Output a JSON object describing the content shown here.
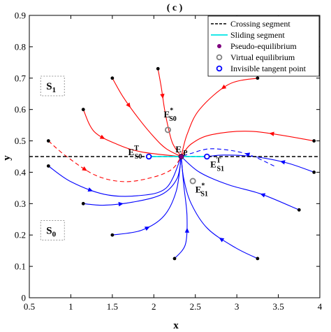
{
  "chart_data": {
    "type": "line",
    "title": "( c )",
    "xlabel": "x",
    "ylabel": "y",
    "xlim": [
      0.5,
      4
    ],
    "ylim": [
      0,
      0.9
    ],
    "xticks": [
      0.5,
      1,
      1.5,
      2,
      2.5,
      3,
      3.5,
      4
    ],
    "yticks": [
      0,
      0.1,
      0.2,
      0.3,
      0.4,
      0.5,
      0.6,
      0.7,
      0.8,
      0.9
    ],
    "xtick_labels": [
      "0.5",
      "1",
      "1.5",
      "2",
      "2.5",
      "3",
      "3.5",
      "4"
    ],
    "ytick_labels": [
      "0",
      "0.1",
      "0.2",
      "0.3",
      "0.4",
      "0.5",
      "0.6",
      "0.7",
      "0.8",
      "0.9"
    ],
    "grid": false,
    "legend_position": "top-right",
    "crossing_segment_y": 0.45,
    "sliding_segment": {
      "x": [
        1.94,
        2.64
      ],
      "y": 0.45
    },
    "legend": [
      {
        "label": "Crossing segment",
        "kind": "dashed-line",
        "color": "#000000"
      },
      {
        "label": "Sliding segment",
        "kind": "line",
        "color": "#00e5e5"
      },
      {
        "label": "Pseudo-equilibrium",
        "kind": "dot",
        "color": "#7f007f"
      },
      {
        "label": "Virtual equilibrium",
        "kind": "ring",
        "color": "#808080"
      },
      {
        "label": "Invisible tangent point",
        "kind": "ring",
        "color": "#0000ff"
      }
    ],
    "points": [
      {
        "id": "E_P",
        "x": 2.33,
        "y": 0.45,
        "kind": "pseudo"
      },
      {
        "id": "E_S0_T",
        "x": 1.94,
        "y": 0.45,
        "kind": "tangent"
      },
      {
        "id": "E_S1_T",
        "x": 2.64,
        "y": 0.45,
        "kind": "tangent"
      },
      {
        "id": "E_S0_star",
        "x": 2.17,
        "y": 0.535,
        "kind": "virtual"
      },
      {
        "id": "E_S1_star",
        "x": 2.47,
        "y": 0.372,
        "kind": "virtual"
      }
    ],
    "point_labels": [
      {
        "for": "E_P",
        "main": "E",
        "sub": "P"
      },
      {
        "for": "E_S0_T",
        "main": "E",
        "sup": "T",
        "sub": "S0"
      },
      {
        "for": "E_S1_T",
        "main": "E",
        "sup": "T",
        "sub": "S1"
      },
      {
        "for": "E_S0_star",
        "main": "E",
        "sup": "*",
        "sub": "S0"
      },
      {
        "for": "E_S1_star",
        "main": "E",
        "sup": "*",
        "sub": "S1"
      }
    ],
    "regions": [
      {
        "main": "S",
        "sub": "1",
        "x": 0.78,
        "y": 0.675
      },
      {
        "main": "S",
        "sub": "0",
        "x": 0.78,
        "y": 0.215
      }
    ],
    "trajectories": [
      {
        "region": "S1",
        "color": "#ff0000",
        "dash": false,
        "start_dot": true,
        "points": [
          [
            1.5,
            0.7
          ],
          [
            1.63,
            0.64
          ],
          [
            1.82,
            0.57
          ],
          [
            2.01,
            0.51
          ],
          [
            2.15,
            0.475
          ],
          [
            2.33,
            0.45
          ]
        ]
      },
      {
        "region": "S1",
        "color": "#ff0000",
        "dash": false,
        "start_dot": true,
        "points": [
          [
            2.05,
            0.73
          ],
          [
            2.09,
            0.67
          ],
          [
            2.13,
            0.6
          ],
          [
            2.18,
            0.535
          ],
          [
            2.23,
            0.49
          ],
          [
            2.33,
            0.45
          ]
        ]
      },
      {
        "region": "S1",
        "color": "#ff0000",
        "dash": false,
        "start_dot": true,
        "points": [
          [
            1.15,
            0.6
          ],
          [
            1.28,
            0.53
          ],
          [
            1.55,
            0.49
          ],
          [
            1.85,
            0.465
          ],
          [
            2.33,
            0.45
          ]
        ]
      },
      {
        "region": "S1",
        "color": "#ff0000",
        "dash": false,
        "start_dot": true,
        "points": [
          [
            3.25,
            0.7
          ],
          [
            2.9,
            0.68
          ],
          [
            2.55,
            0.6
          ],
          [
            2.4,
            0.52
          ],
          [
            2.33,
            0.45
          ]
        ]
      },
      {
        "region": "S1",
        "color": "#ff0000",
        "dash": false,
        "start_dot": true,
        "points": [
          [
            3.93,
            0.5
          ],
          [
            3.2,
            0.53
          ],
          [
            2.7,
            0.52
          ],
          [
            2.45,
            0.49
          ],
          [
            2.33,
            0.45
          ]
        ]
      },
      {
        "region": "S1",
        "color": "#ff0000",
        "dash": true,
        "start_dot": true,
        "points": [
          [
            0.73,
            0.5
          ],
          [
            0.95,
            0.45
          ],
          [
            1.3,
            0.39
          ],
          [
            1.65,
            0.37
          ],
          [
            2.0,
            0.385
          ],
          [
            2.22,
            0.41
          ],
          [
            2.33,
            0.45
          ]
        ]
      },
      {
        "region": "S0",
        "color": "#0000ff",
        "dash": false,
        "start_dot": true,
        "points": [
          [
            0.73,
            0.42
          ],
          [
            1.0,
            0.37
          ],
          [
            1.4,
            0.33
          ],
          [
            1.8,
            0.325
          ],
          [
            2.15,
            0.35
          ],
          [
            2.33,
            0.45
          ]
        ]
      },
      {
        "region": "S0",
        "color": "#0000ff",
        "dash": false,
        "start_dot": true,
        "points": [
          [
            1.15,
            0.3
          ],
          [
            1.4,
            0.295
          ],
          [
            1.75,
            0.305
          ],
          [
            2.1,
            0.33
          ],
          [
            2.28,
            0.38
          ],
          [
            2.33,
            0.45
          ]
        ]
      },
      {
        "region": "S0",
        "color": "#0000ff",
        "dash": false,
        "start_dot": true,
        "points": [
          [
            1.5,
            0.2
          ],
          [
            1.85,
            0.215
          ],
          [
            2.12,
            0.26
          ],
          [
            2.27,
            0.34
          ],
          [
            2.33,
            0.45
          ]
        ]
      },
      {
        "region": "S0",
        "color": "#0000ff",
        "dash": false,
        "start_dot": true,
        "points": [
          [
            2.25,
            0.125
          ],
          [
            2.38,
            0.17
          ],
          [
            2.4,
            0.26
          ],
          [
            2.36,
            0.36
          ],
          [
            2.33,
            0.45
          ]
        ]
      },
      {
        "region": "S0",
        "color": "#0000ff",
        "dash": false,
        "start_dot": true,
        "points": [
          [
            3.25,
            0.125
          ],
          [
            2.98,
            0.16
          ],
          [
            2.65,
            0.22
          ],
          [
            2.45,
            0.3
          ],
          [
            2.36,
            0.38
          ],
          [
            2.33,
            0.45
          ]
        ]
      },
      {
        "region": "S0",
        "color": "#0000ff",
        "dash": false,
        "start_dot": true,
        "points": [
          [
            3.75,
            0.28
          ],
          [
            3.3,
            0.33
          ],
          [
            2.9,
            0.36
          ],
          [
            2.55,
            0.4
          ],
          [
            2.33,
            0.45
          ]
        ]
      },
      {
        "region": "S0",
        "color": "#0000ff",
        "dash": false,
        "start_dot": true,
        "points": [
          [
            3.93,
            0.4
          ],
          [
            3.6,
            0.43
          ],
          [
            3.2,
            0.45
          ],
          [
            2.85,
            0.455
          ],
          [
            2.64,
            0.45
          ]
        ]
      },
      {
        "region": "S0",
        "color": "#0000ff",
        "dash": true,
        "start_dot": false,
        "points": [
          [
            3.45,
            0.42
          ],
          [
            3.1,
            0.46
          ],
          [
            2.7,
            0.475
          ],
          [
            2.45,
            0.46
          ],
          [
            2.33,
            0.45
          ]
        ]
      }
    ]
  }
}
